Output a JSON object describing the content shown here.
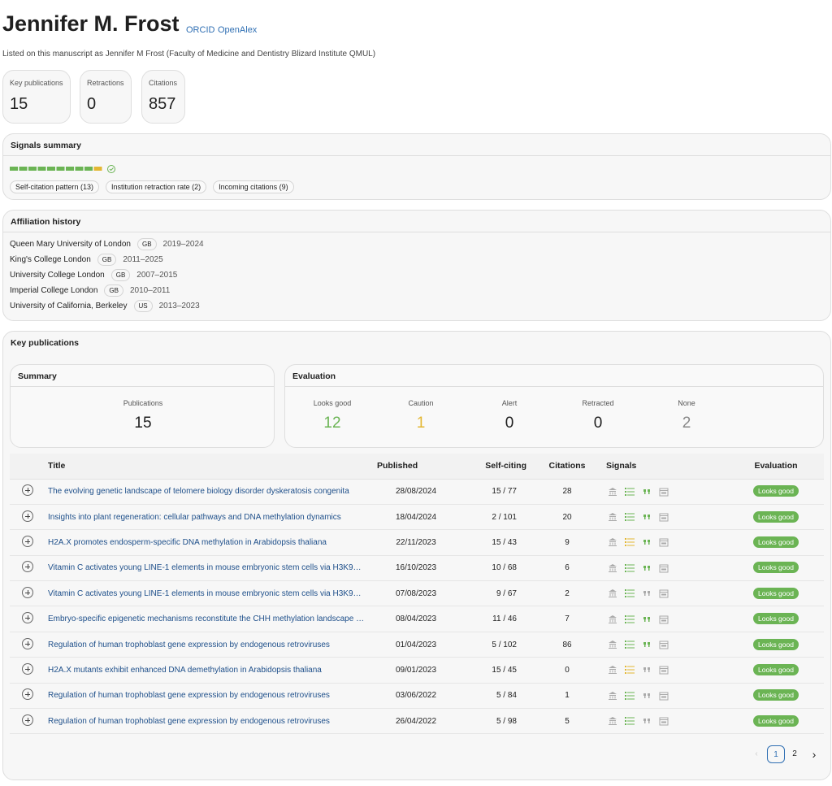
{
  "header": {
    "name": "Jennifer M. Frost",
    "links": [
      "ORCID",
      "OpenAlex"
    ],
    "listed": "Listed on this manuscript as Jennifer M Frost (Faculty of Medicine and Dentistry Blizard Institute QMUL)"
  },
  "stats": [
    {
      "label": "Key publications",
      "value": 15
    },
    {
      "label": "Retractions",
      "value": 0
    },
    {
      "label": "Citations",
      "value": 857
    }
  ],
  "signals": {
    "title": "Signals summary",
    "chips": [
      "Self-citation pattern (13)",
      "Institution retraction rate (2)",
      "Incoming citations (9)"
    ]
  },
  "affiliations": {
    "title": "Affiliation history",
    "rows": [
      {
        "name": "Queen Mary University of London",
        "country": "GB",
        "years": "2019–2024"
      },
      {
        "name": "King's College London",
        "country": "GB",
        "years": "2011–2025"
      },
      {
        "name": "University College London",
        "country": "GB",
        "years": "2007–2015"
      },
      {
        "name": "Imperial College London",
        "country": "GB",
        "years": "2010–2011"
      },
      {
        "name": "University of California, Berkeley",
        "country": "US",
        "years": "2013–2023"
      }
    ]
  },
  "key_publications": {
    "title": "Key publications",
    "summary": {
      "title": "Summary",
      "label": "Publications",
      "value": 15
    },
    "evaluation": {
      "title": "Evaluation",
      "items": [
        {
          "label": "Looks good",
          "value": 12,
          "color": "#6bb454"
        },
        {
          "label": "Caution",
          "value": 1,
          "color": "#e3b733"
        },
        {
          "label": "Alert",
          "value": 0,
          "color": "#1f1f1f"
        },
        {
          "label": "Retracted",
          "value": 0,
          "color": "#1f1f1f"
        },
        {
          "label": "None",
          "value": 2,
          "color": "#888888"
        }
      ]
    },
    "table": {
      "columns": [
        "Title",
        "Published",
        "Self-citing",
        "Citations",
        "Signals",
        "Evaluation"
      ],
      "rows": [
        {
          "title": "The evolving genetic landscape of telomere biology disorder dyskeratosis congenita",
          "published": "28/08/2024",
          "self_citing": "15 / 77",
          "citations": 28,
          "evaluation": "Looks good",
          "signal_colors": [
            "#aaaaaa",
            "#6bb454",
            "#6bb454",
            "#aaaaaa"
          ]
        },
        {
          "title": "Insights into plant regeneration: cellular pathways and DNA methylation dynamics",
          "published": "18/04/2024",
          "self_citing": "2 / 101",
          "citations": 20,
          "evaluation": "Looks good",
          "signal_colors": [
            "#aaaaaa",
            "#6bb454",
            "#6bb454",
            "#aaaaaa"
          ]
        },
        {
          "title": "H2A.X promotes endosperm-specific DNA methylation in Arabidopsis thaliana",
          "published": "22/11/2023",
          "self_citing": "15 / 43",
          "citations": 9,
          "evaluation": "Looks good",
          "signal_colors": [
            "#aaaaaa",
            "#e3b733",
            "#6bb454",
            "#aaaaaa"
          ]
        },
        {
          "title": "Vitamin C activates young LINE-1 elements in mouse embryonic stem cells via H3K9…",
          "published": "16/10/2023",
          "self_citing": "10 / 68",
          "citations": 6,
          "evaluation": "Looks good",
          "signal_colors": [
            "#aaaaaa",
            "#6bb454",
            "#6bb454",
            "#aaaaaa"
          ]
        },
        {
          "title": "Vitamin C activates young LINE-1 elements in mouse embryonic stem cells via H3K9…",
          "published": "07/08/2023",
          "self_citing": "9 / 67",
          "citations": 2,
          "evaluation": "Looks good",
          "signal_colors": [
            "#aaaaaa",
            "#6bb454",
            "#aaaaaa",
            "#aaaaaa"
          ]
        },
        {
          "title": "Embryo-specific epigenetic mechanisms reconstitute the CHH methylation landscape …",
          "published": "08/04/2023",
          "self_citing": "11 / 46",
          "citations": 7,
          "evaluation": "Looks good",
          "signal_colors": [
            "#aaaaaa",
            "#6bb454",
            "#6bb454",
            "#aaaaaa"
          ]
        },
        {
          "title": "Regulation of human trophoblast gene expression by endogenous retroviruses",
          "published": "01/04/2023",
          "self_citing": "5 / 102",
          "citations": 86,
          "evaluation": "Looks good",
          "signal_colors": [
            "#aaaaaa",
            "#6bb454",
            "#6bb454",
            "#aaaaaa"
          ]
        },
        {
          "title": "H2A.X mutants exhibit enhanced DNA demethylation in Arabidopsis thaliana",
          "published": "09/01/2023",
          "self_citing": "15 / 45",
          "citations": 0,
          "evaluation": "Looks good",
          "signal_colors": [
            "#aaaaaa",
            "#e3b733",
            "#aaaaaa",
            "#aaaaaa"
          ]
        },
        {
          "title": "Regulation of human trophoblast gene expression by endogenous retroviruses",
          "published": "03/06/2022",
          "self_citing": "5 / 84",
          "citations": 1,
          "evaluation": "Looks good",
          "signal_colors": [
            "#aaaaaa",
            "#6bb454",
            "#aaaaaa",
            "#aaaaaa"
          ]
        },
        {
          "title": "Regulation of human trophoblast gene expression by endogenous retroviruses",
          "published": "26/04/2022",
          "self_citing": "5 / 98",
          "citations": 5,
          "evaluation": "Looks good",
          "signal_colors": [
            "#aaaaaa",
            "#6bb454",
            "#aaaaaa",
            "#aaaaaa"
          ]
        }
      ]
    },
    "pagination": {
      "pages": [
        1,
        2
      ],
      "current": 1
    }
  }
}
